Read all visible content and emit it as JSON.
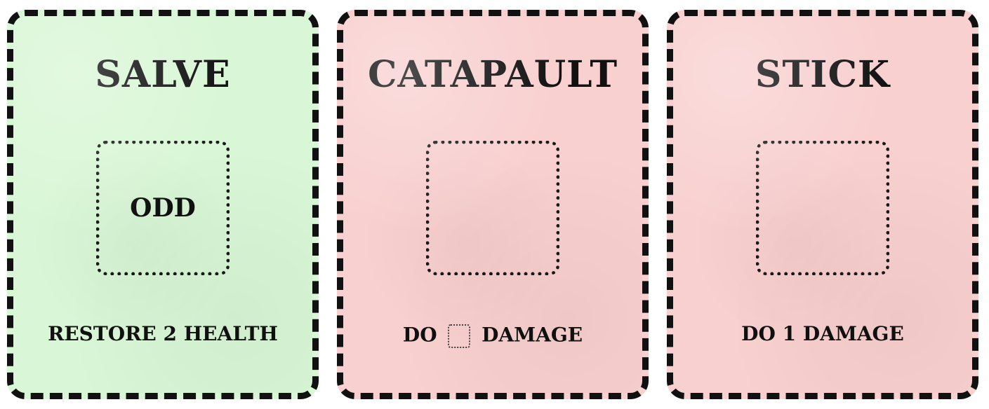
{
  "cards": [
    {
      "title": "SALVE",
      "slot_value": "ODD",
      "description": "RESTORE 2 HEALTH",
      "color": "#d9f7d6"
    },
    {
      "title": "CATAPAULT",
      "slot_value": "",
      "description_prefix": "DO",
      "description_suffix": "DAMAGE",
      "color": "#f9d0d0"
    },
    {
      "title": "STICK",
      "slot_value": "",
      "description": "DO 1 DAMAGE",
      "color": "#f9d0d0"
    }
  ],
  "colors": {
    "green_card": "#d9f7d6",
    "red_card": "#f9d0d0",
    "ink": "#111111"
  }
}
